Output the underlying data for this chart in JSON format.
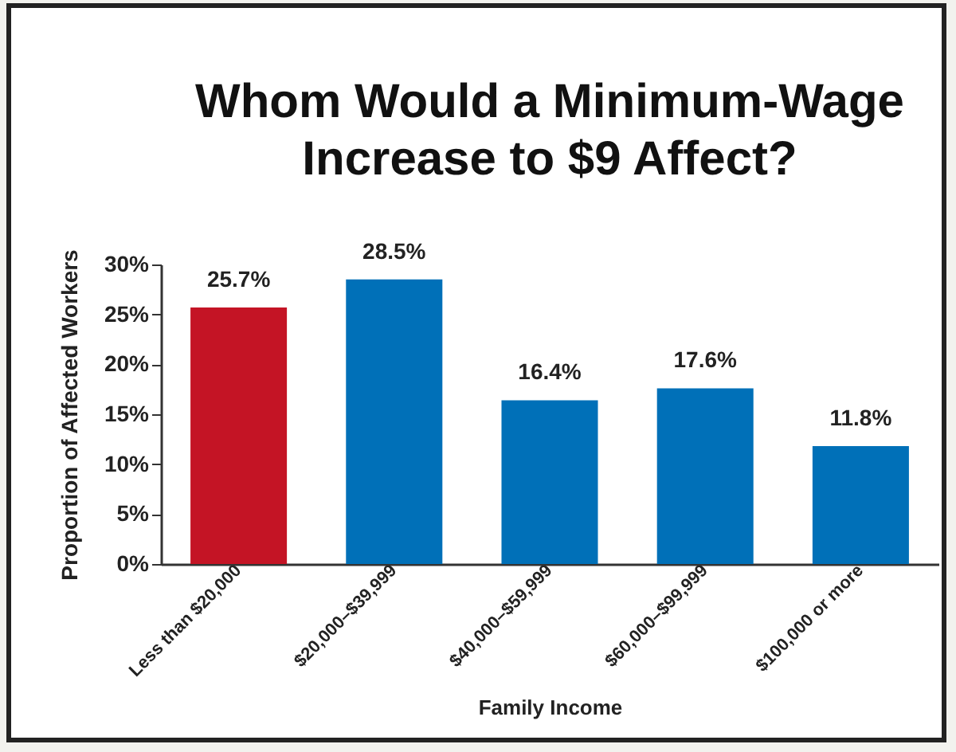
{
  "chart_data": {
    "type": "bar",
    "title": "Whom Would a Minimum-Wage Increase to $9 Affect?",
    "xlabel": "Family Income",
    "ylabel": "Proportion of Affected Workers",
    "categories": [
      "Less than $20,000",
      "$20,000–$39,999",
      "$40,000–$59,999",
      "$60,000–$99,999",
      "$100,000 or more"
    ],
    "values": [
      25.7,
      28.5,
      16.4,
      17.6,
      11.8
    ],
    "value_labels": [
      "25.7%",
      "28.5%",
      "16.4%",
      "17.6%",
      "11.8%"
    ],
    "colors": [
      "#c41425",
      "#0070b8",
      "#0070b8",
      "#0070b8",
      "#0070b8"
    ],
    "ylim": [
      0,
      30
    ],
    "yticks": [
      {
        "value": 0,
        "label": "0%"
      },
      {
        "value": 5,
        "label": "5%"
      },
      {
        "value": 10,
        "label": "10%"
      },
      {
        "value": 15,
        "label": "15%"
      },
      {
        "value": 20,
        "label": "20%"
      },
      {
        "value": 25,
        "label": "25%"
      },
      {
        "value": 30,
        "label": "30%"
      }
    ],
    "grid": false,
    "legend": false
  }
}
